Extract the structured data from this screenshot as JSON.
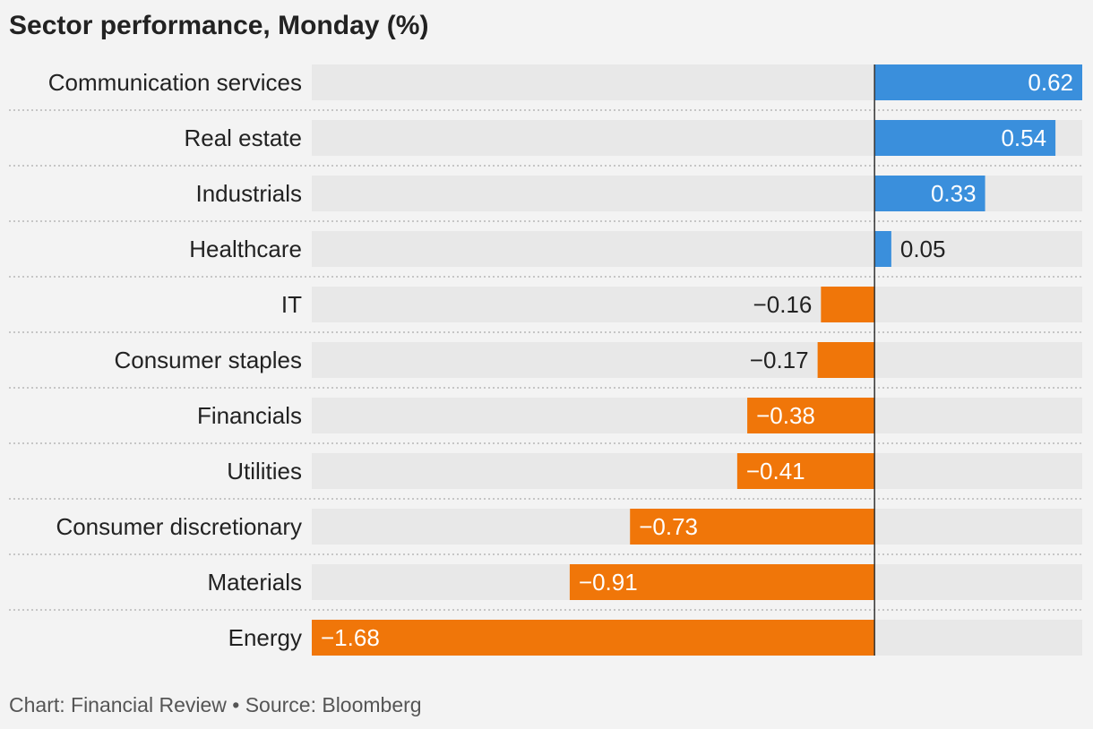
{
  "chart_data": {
    "type": "bar",
    "orientation": "horizontal",
    "title": "Sector performance, Monday (%)",
    "categories": [
      "Communication services",
      "Real estate",
      "Industrials",
      "Healthcare",
      "IT",
      "Consumer staples",
      "Financials",
      "Utilities",
      "Consumer discretionary",
      "Materials",
      "Energy"
    ],
    "values": [
      0.62,
      0.54,
      0.33,
      0.05,
      -0.16,
      -0.17,
      -0.38,
      -0.41,
      -0.73,
      -0.91,
      -1.68
    ],
    "value_labels": [
      "0.62",
      "0.54",
      "0.33",
      "0.05",
      "−0.16",
      "−0.17",
      "−0.38",
      "−0.41",
      "−0.73",
      "−0.91",
      "−1.68"
    ],
    "xlim": [
      -1.68,
      0.62
    ],
    "colors": {
      "positive": "#3a8fdc",
      "negative": "#f07609",
      "track": "#e8e8e8",
      "baseline": "#333333",
      "background": "#f3f3f3"
    }
  },
  "footer": "Chart: Financial Review • Source: Bloomberg"
}
